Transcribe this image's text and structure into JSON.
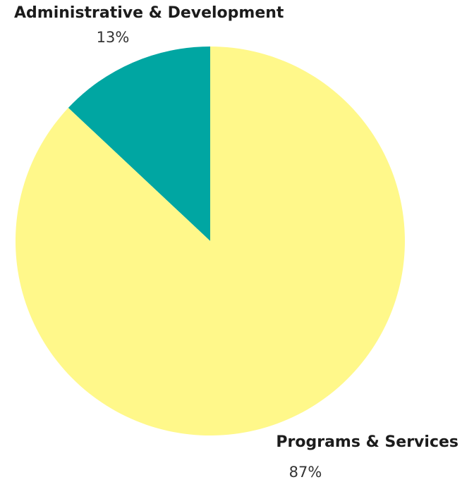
{
  "chart_data": {
    "type": "pie",
    "title": "",
    "start_angle_deg": 0,
    "direction": "counterclockwise",
    "slices": [
      {
        "label": "Administrative & Development",
        "value": 13,
        "value_label": "13%",
        "color": "#00a6a2"
      },
      {
        "label": "Programs & Services",
        "value": 87,
        "value_label": "87%",
        "color": "#fff88a"
      }
    ]
  }
}
